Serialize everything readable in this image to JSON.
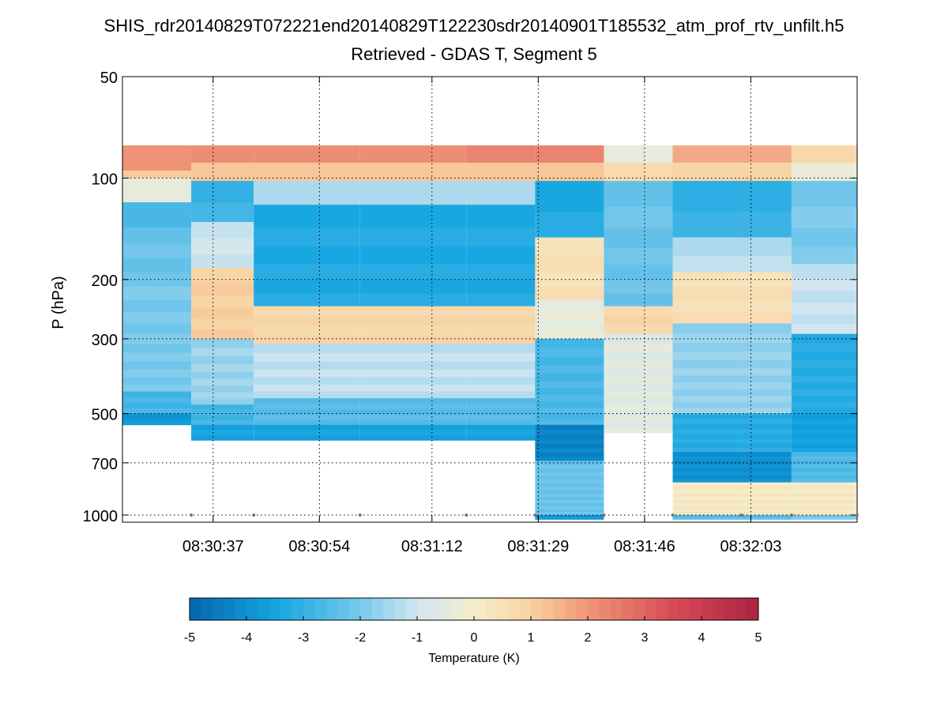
{
  "chart_data": {
    "type": "heatmap",
    "title": "SHIS_rdr20140829T072221end20140829T122230sdr20140901T185532_atm_prof_rtv_unfilt.h5",
    "subtitle": "Retrieved - GDAS T, Segment 5",
    "ylabel": "P (hPa)",
    "xlabel": "",
    "y_scale": "log",
    "y_reversed": true,
    "ylim": [
      50,
      1050
    ],
    "y_ticks": [
      50,
      100,
      200,
      300,
      500,
      700,
      1000
    ],
    "x_ticks": [
      "08:30:37",
      "08:30:54",
      "08:31:12",
      "08:31:29",
      "08:31:46",
      "08:32:03"
    ],
    "x_tick_seconds": [
      37,
      54,
      72,
      89,
      106,
      123
    ],
    "x_range_seconds": [
      22.5,
      140
    ],
    "grid": true,
    "colorbar": {
      "label": "Temperature (K)",
      "range": [
        -5,
        5
      ],
      "ticks": [
        "-5",
        "-4",
        "-3",
        "-2",
        "-1",
        "0",
        "1",
        "2",
        "3",
        "4",
        "5"
      ]
    },
    "profiles": [
      {
        "x_start": 22.5,
        "x_end": 33.5,
        "p_bottom": 540,
        "marker": false,
        "layers": [
          [
            80,
            95,
            2.2
          ],
          [
            95,
            100,
            1.2
          ],
          [
            100,
            118,
            -0.3
          ],
          [
            118,
            140,
            -2.6
          ],
          [
            140,
            190,
            -2.2
          ],
          [
            190,
            430,
            -2.0
          ],
          [
            430,
            500,
            -2.8
          ],
          [
            500,
            540,
            -3.8
          ]
        ]
      },
      {
        "x_start": 33.5,
        "x_end": 43.5,
        "p_bottom": 600,
        "marker": true,
        "layers": [
          [
            80,
            90,
            2.3
          ],
          [
            90,
            102,
            1.3
          ],
          [
            102,
            135,
            -2.9
          ],
          [
            135,
            185,
            -1.0
          ],
          [
            185,
            300,
            1.0
          ],
          [
            300,
            470,
            -1.6
          ],
          [
            470,
            540,
            -2.8
          ],
          [
            540,
            600,
            -3.5
          ]
        ]
      },
      {
        "x_start": 43.5,
        "x_end": 60.5,
        "p_bottom": 600,
        "marker": true,
        "layers": [
          [
            80,
            90,
            2.3
          ],
          [
            90,
            102,
            1.3
          ],
          [
            102,
            120,
            -1.3
          ],
          [
            120,
            240,
            -3.3
          ],
          [
            240,
            310,
            0.8
          ],
          [
            310,
            450,
            -1.2
          ],
          [
            450,
            540,
            -2.5
          ],
          [
            540,
            600,
            -3.5
          ]
        ]
      },
      {
        "x_start": 60.5,
        "x_end": 77.5,
        "p_bottom": 600,
        "marker": true,
        "layers": [
          [
            80,
            90,
            2.3
          ],
          [
            90,
            102,
            1.3
          ],
          [
            102,
            120,
            -1.3
          ],
          [
            120,
            240,
            -3.3
          ],
          [
            240,
            310,
            0.8
          ],
          [
            310,
            450,
            -1.2
          ],
          [
            450,
            540,
            -2.5
          ],
          [
            540,
            600,
            -3.5
          ]
        ]
      },
      {
        "x_start": 77.5,
        "x_end": 88.5,
        "p_bottom": 600,
        "marker": true,
        "layers": [
          [
            80,
            90,
            2.5
          ],
          [
            90,
            102,
            1.3
          ],
          [
            102,
            120,
            -1.3
          ],
          [
            120,
            240,
            -3.3
          ],
          [
            240,
            310,
            0.8
          ],
          [
            310,
            450,
            -1.2
          ],
          [
            450,
            540,
            -2.5
          ],
          [
            540,
            600,
            -3.5
          ]
        ]
      },
      {
        "x_start": 88.5,
        "x_end": 99.5,
        "p_bottom": 1030,
        "marker": true,
        "layers": [
          [
            80,
            90,
            2.5
          ],
          [
            90,
            102,
            1.3
          ],
          [
            102,
            150,
            -3.3
          ],
          [
            150,
            230,
            0.5
          ],
          [
            230,
            300,
            -0.4
          ],
          [
            300,
            540,
            -2.7
          ],
          [
            540,
            690,
            -4.3
          ],
          [
            690,
            1000,
            -2.2
          ],
          [
            1000,
            1030,
            -3.8
          ]
        ]
      },
      {
        "x_start": 99.5,
        "x_end": 110.5,
        "p_bottom": 570,
        "marker": true,
        "layers": [
          [
            80,
            90,
            -0.3
          ],
          [
            90,
            102,
            0.8
          ],
          [
            102,
            240,
            -2.2
          ],
          [
            240,
            290,
            0.8
          ],
          [
            290,
            570,
            -0.6
          ]
        ]
      },
      {
        "x_start": 110.5,
        "x_end": 121.5,
        "p_bottom": 1030,
        "marker": true,
        "layers": [
          [
            80,
            90,
            1.8
          ],
          [
            90,
            102,
            1.0
          ],
          [
            102,
            150,
            -3.0
          ],
          [
            150,
            190,
            -1.3
          ],
          [
            190,
            270,
            0.5
          ],
          [
            270,
            500,
            -1.7
          ],
          [
            500,
            650,
            -3.2
          ],
          [
            650,
            800,
            -4.0
          ],
          [
            800,
            1000,
            0.2
          ],
          [
            1000,
            1030,
            -2.5
          ]
        ]
      },
      {
        "x_start": 121.5,
        "x_end": 129.5,
        "p_bottom": 1030,
        "marker": true,
        "layers": [
          [
            80,
            90,
            1.8
          ],
          [
            90,
            102,
            1.0
          ],
          [
            102,
            150,
            -3.0
          ],
          [
            150,
            190,
            -1.3
          ],
          [
            190,
            270,
            0.5
          ],
          [
            270,
            500,
            -1.7
          ],
          [
            500,
            650,
            -3.2
          ],
          [
            650,
            800,
            -4.0
          ],
          [
            800,
            1000,
            0.2
          ],
          [
            1000,
            1030,
            -2.5
          ]
        ]
      },
      {
        "x_start": 129.5,
        "x_end": 140,
        "p_bottom": 1030,
        "marker": true,
        "layers": [
          [
            80,
            90,
            0.9
          ],
          [
            90,
            102,
            -0.2
          ],
          [
            102,
            180,
            -2.0
          ],
          [
            180,
            290,
            -1.1
          ],
          [
            290,
            500,
            -3.2
          ],
          [
            500,
            650,
            -3.6
          ],
          [
            650,
            800,
            -2.6
          ],
          [
            800,
            1000,
            0.2
          ],
          [
            1000,
            1030,
            -2.0
          ]
        ]
      }
    ]
  }
}
